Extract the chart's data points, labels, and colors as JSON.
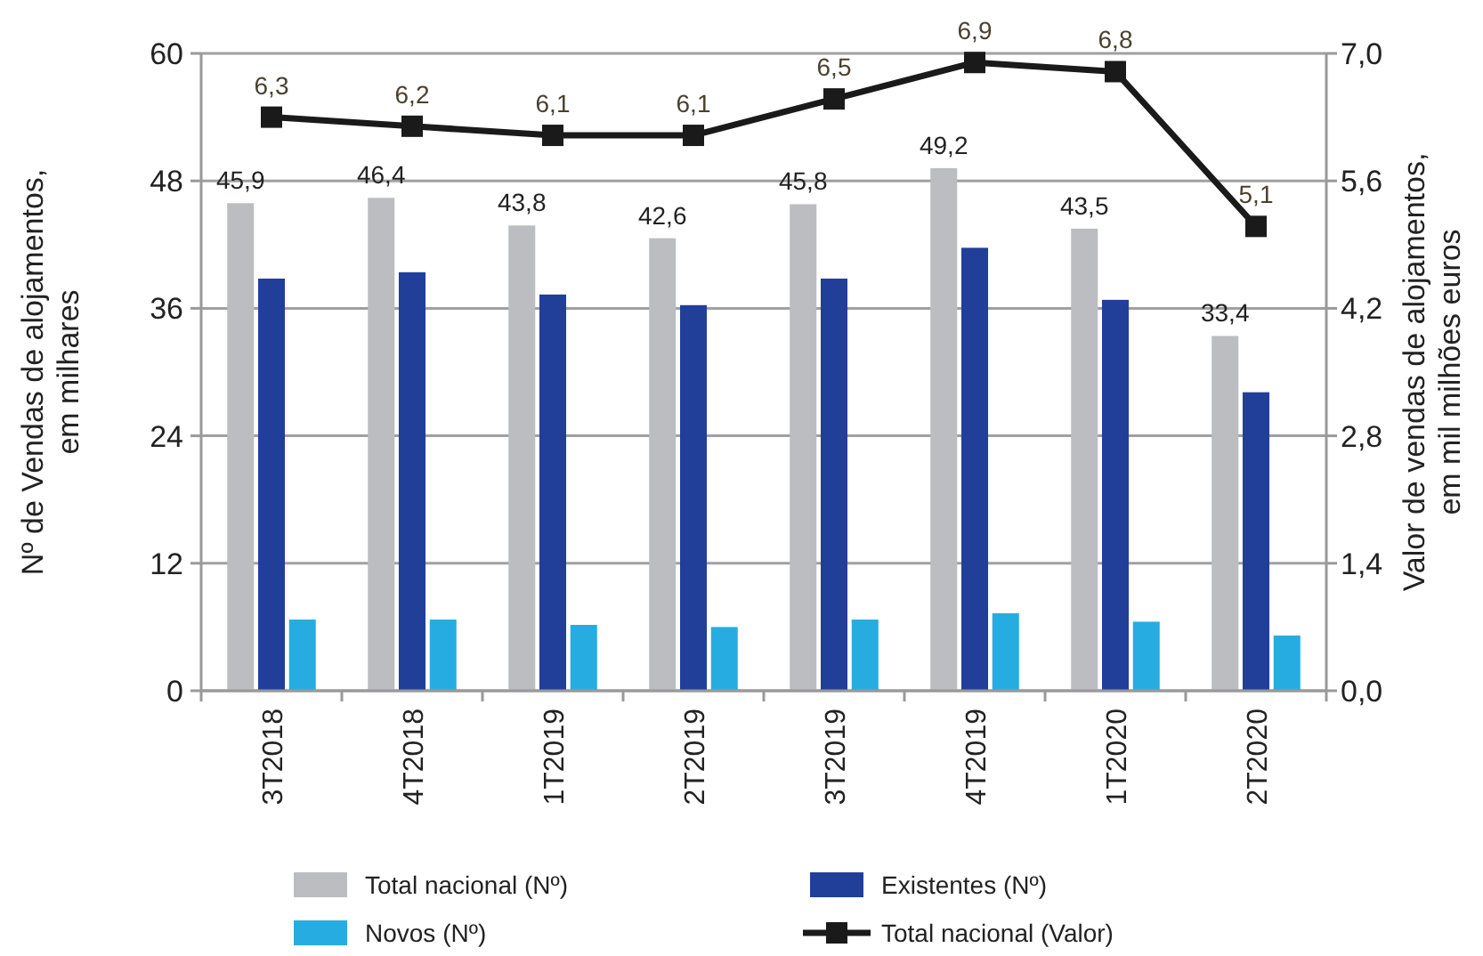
{
  "chart_data": {
    "type": "bar",
    "ylabel": "Nº de Vendas de alojamentos,\nem milhares",
    "y2label": "Valor de vendas de alojamentos,\nem mil milhões euros",
    "categories": [
      "3T2018",
      "4T2018",
      "1T2019",
      "2T2019",
      "3T2019",
      "4T2019",
      "1T2020",
      "2T2020"
    ],
    "series": [
      {
        "name": "Total nacional (Nº)",
        "color": "#bcbdc1",
        "values": [
          45.9,
          46.4,
          43.8,
          42.6,
          45.8,
          49.2,
          43.5,
          33.4
        ],
        "value_labels": [
          "45,9",
          "46,4",
          "43,8",
          "42,6",
          "45,8",
          "49,2",
          "43,5",
          "33,4"
        ]
      },
      {
        "name": "Existentes (Nº)",
        "color": "#213f99",
        "values": [
          38.8,
          39.4,
          37.3,
          36.3,
          38.8,
          41.7,
          36.8,
          28.1
        ]
      },
      {
        "name": "Novos (Nº)",
        "color": "#27ace2",
        "values": [
          6.7,
          6.7,
          6.2,
          6.0,
          6.7,
          7.3,
          6.5,
          5.2
        ]
      },
      {
        "name": "Total nacional (Valor)",
        "type": "line",
        "axis": "y2",
        "color": "#1a1a1a",
        "marker": "square",
        "values": [
          6.3,
          6.2,
          6.1,
          6.1,
          6.5,
          6.9,
          6.8,
          5.1
        ],
        "value_labels": [
          "6,3",
          "6,2",
          "6,1",
          "6,1",
          "6,5",
          "6,9",
          "6,8",
          "5,1"
        ]
      }
    ],
    "ylim": [
      0,
      60
    ],
    "yticks": [
      0,
      12,
      24,
      36,
      48,
      60
    ],
    "y2lim": [
      0,
      7
    ],
    "y2ticks": [
      {
        "value": 0,
        "label": "0,0"
      },
      {
        "value": 1.4,
        "label": "1,4"
      },
      {
        "value": 2.8,
        "label": "2,8"
      },
      {
        "value": 4.2,
        "label": "4,2"
      },
      {
        "value": 5.6,
        "label": "5,6"
      },
      {
        "value": 7,
        "label": "7,0"
      }
    ],
    "grid": "y",
    "legend": "bottom"
  }
}
